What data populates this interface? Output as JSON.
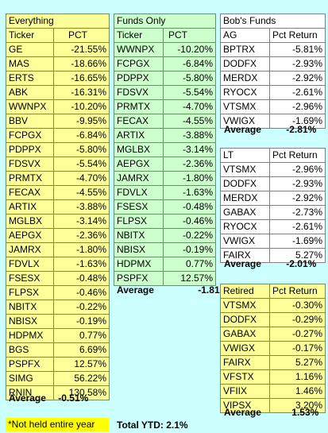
{
  "everything": {
    "title": "Everything",
    "col_ticker": "Ticker",
    "col_pct": "PCT",
    "rows": [
      [
        "GE",
        "-21.55%"
      ],
      [
        "MAS",
        "-18.66%"
      ],
      [
        "ERTS",
        "-16.65%"
      ],
      [
        "ABK",
        "-16.31%"
      ],
      [
        "WWNPX",
        "-10.20%"
      ],
      [
        "BBV",
        "-9.95%"
      ],
      [
        "FCPGX",
        "-6.84%"
      ],
      [
        "PDPPX",
        "-5.80%"
      ],
      [
        "FDSVX",
        "-5.54%"
      ],
      [
        "PRMTX",
        "-4.70%"
      ],
      [
        "FECAX",
        "-4.55%"
      ],
      [
        "ARTIX",
        "-3.88%"
      ],
      [
        "MGLBX",
        "-3.14%"
      ],
      [
        "AEPGX",
        "-2.36%"
      ],
      [
        "JAMRX",
        "-1.80%"
      ],
      [
        "FDVLX",
        "-1.63%"
      ],
      [
        "FSESX",
        "-0.48%"
      ],
      [
        "FLPSX",
        "-0.46%"
      ],
      [
        "NBITX",
        "-0.22%"
      ],
      [
        "NBISX",
        "-0.19%"
      ],
      [
        "HDPMX",
        "0.77%"
      ],
      [
        "BGS",
        "6.69%"
      ],
      [
        "PSPFX",
        "12.57%"
      ],
      [
        "SIMG",
        "56.22%"
      ],
      [
        "RNIN",
        "130.58%"
      ]
    ],
    "avg_label": "Average",
    "avg_value": "-0.51%"
  },
  "funds": {
    "title": "Funds Only",
    "col_ticker": "Ticker",
    "col_pct": "PCT",
    "rows": [
      [
        "WWNPX",
        "-10.20%"
      ],
      [
        "FCPGX",
        "-6.84%"
      ],
      [
        "PDPPX",
        "-5.80%"
      ],
      [
        "FDSVX",
        "-5.54%"
      ],
      [
        "PRMTX",
        "-4.70%"
      ],
      [
        "FECAX",
        "-4.55%"
      ],
      [
        "ARTIX",
        "-3.88%"
      ],
      [
        "MGLBX",
        "-3.14%"
      ],
      [
        "AEPGX",
        "-2.36%"
      ],
      [
        "JAMRX",
        "-1.80%"
      ],
      [
        "FDVLX",
        "-1.63%"
      ],
      [
        "FSESX",
        "-0.48%"
      ],
      [
        "FLPSX",
        "-0.46%"
      ],
      [
        "NBITX",
        "-0.22%"
      ],
      [
        "NBISX",
        "-0.19%"
      ],
      [
        "HDPMX",
        "0.77%"
      ],
      [
        "PSPFX",
        "12.57%"
      ]
    ],
    "avg_label": "Average",
    "avg_value": "-1.81%"
  },
  "bobs": {
    "title": "Bob's Funds",
    "ag": {
      "col_ticker": "AG",
      "col_pct": "Pct Return",
      "rows": [
        [
          "BPTRX",
          "-5.81%"
        ],
        [
          "DODFX",
          "-2.93%"
        ],
        [
          "MERDX",
          "-2.92%"
        ],
        [
          "RYOCX",
          "-2.61%"
        ],
        [
          "VTSMX",
          "-2.96%"
        ],
        [
          "VWIGX",
          "-1.69%"
        ]
      ],
      "avg_label": "Average",
      "avg_value": "-2.81%"
    },
    "lt": {
      "col_ticker": "LT",
      "col_pct": "Pct Return",
      "rows": [
        [
          "VTSMX",
          "-2.96%"
        ],
        [
          "DODFX",
          "-2.93%"
        ],
        [
          "MERDX",
          "-2.92%"
        ],
        [
          "GABAX",
          "-2.73%"
        ],
        [
          "RYOCX",
          "-2.61%"
        ],
        [
          "VWIGX",
          "-1.69%"
        ],
        [
          "FAIRX",
          "5.27%"
        ]
      ],
      "avg_label": "Average",
      "avg_value": "-2.01%"
    },
    "retired": {
      "col_ticker": "Retired",
      "col_pct": "Pct Return",
      "rows": [
        [
          "VTSMX",
          "-0.30%"
        ],
        [
          "DODFX",
          "-0.29%"
        ],
        [
          "GABAX",
          "-0.27%"
        ],
        [
          "VWIGX",
          "-0.17%"
        ],
        [
          "FAIRX",
          "5.27%"
        ],
        [
          "VFSTX",
          "1.16%"
        ],
        [
          "VFIIX",
          "1.46%"
        ],
        [
          "VIPSX",
          "3.20%"
        ]
      ],
      "avg_label": "Average",
      "avg_value": "1.53%"
    }
  },
  "footer": {
    "note": "*Not held entire year",
    "total_label": "Total YTD:",
    "total_value": "2.1%"
  },
  "colors": {
    "background": "#ccffff",
    "everything_fill": "#ffff99",
    "funds_fill": "#ccffcc",
    "highlight": "#ffff00"
  }
}
